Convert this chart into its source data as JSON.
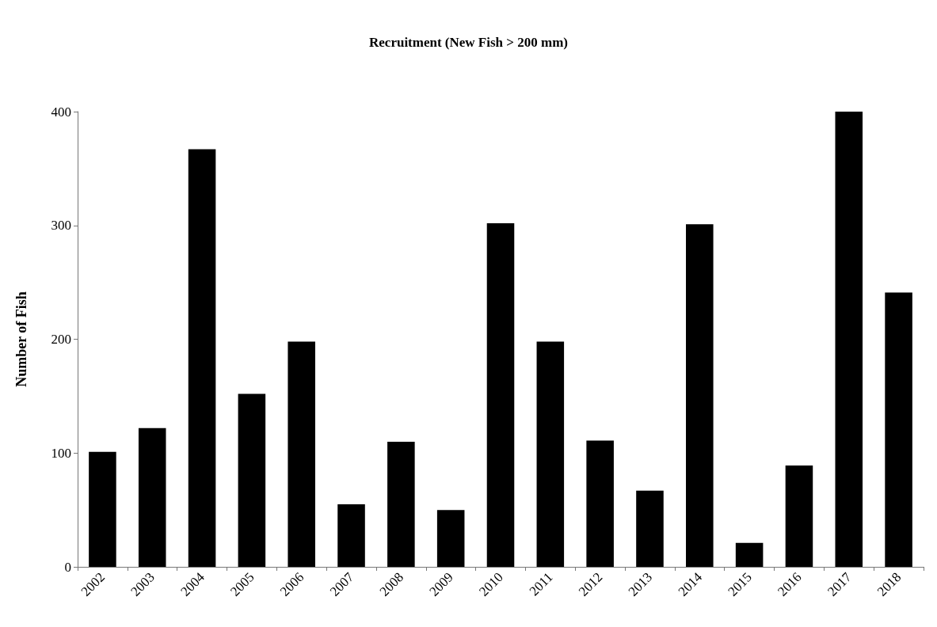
{
  "chart_data": {
    "type": "bar",
    "title": "Recruitment (New Fish > 200 mm)",
    "ylabel": "Number of Fish",
    "categories": [
      "2002",
      "2003",
      "2004",
      "2005",
      "2006",
      "2007",
      "2008",
      "2009",
      "2010",
      "2011",
      "2012",
      "2013",
      "2014",
      "2015",
      "2016",
      "2017",
      "2018"
    ],
    "values": [
      101,
      122,
      367,
      152,
      198,
      55,
      110,
      50,
      302,
      198,
      111,
      67,
      301,
      21,
      89,
      400,
      241
    ],
    "color": "#000000",
    "ylim": [
      0,
      400
    ],
    "yticks": [
      0,
      100,
      200,
      300,
      400
    ],
    "grid": false
  }
}
